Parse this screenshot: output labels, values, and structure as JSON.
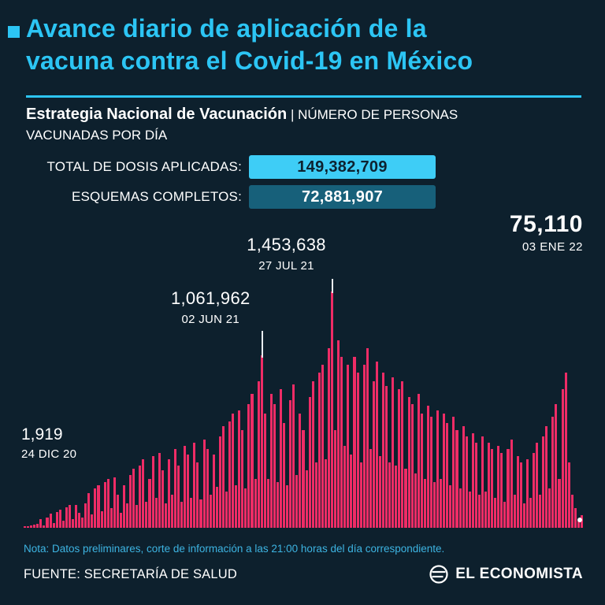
{
  "header": {
    "title_line1": "Avance diario de aplicación de la",
    "title_line2": "vacuna contra el Covid-19 en México",
    "subtitle_bold": "Estrategia Nacional de Vacunación",
    "subtitle_rest": " | NÚMERO DE PERSONAS",
    "subtitle_line2": "VACUNADAS POR DÍA"
  },
  "stats": [
    {
      "label": "TOTAL DE DOSIS APLICADAS:",
      "value": "149,382,709"
    },
    {
      "label": "ESQUEMAS COMPLETOS:",
      "value": "72,881,907"
    }
  ],
  "chart_data": {
    "type": "bar",
    "title": "Número de personas vacunadas por día",
    "x_start": "24 DIC 20",
    "x_end": "03 ENE 22",
    "ylim": [
      0,
      1500000
    ],
    "bar_color": "#ee2c66",
    "values_note": "daily series estimated from bar heights at ~2-day intervals; annotated points are exact",
    "values": [
      1919,
      6000,
      14000,
      19000,
      24000,
      52000,
      16000,
      64000,
      88000,
      30000,
      98000,
      112000,
      42000,
      124000,
      138000,
      52000,
      142000,
      92000,
      62000,
      152000,
      214000,
      82000,
      242000,
      262000,
      102000,
      282000,
      302000,
      122000,
      312000,
      204000,
      92000,
      262000,
      152000,
      322000,
      362000,
      142000,
      382000,
      422000,
      162000,
      302000,
      442000,
      182000,
      462000,
      352000,
      152000,
      422000,
      202000,
      482000,
      382000,
      162000,
      502000,
      452000,
      182000,
      522000,
      402000,
      172000,
      542000,
      482000,
      202000,
      452000,
      252000,
      562000,
      622000,
      222000,
      652000,
      702000,
      262000,
      722000,
      602000,
      242000,
      762000,
      822000,
      302000,
      902000,
      1061962,
      702000,
      302000,
      822000,
      762000,
      282000,
      852000,
      642000,
      262000,
      782000,
      882000,
      322000,
      702000,
      602000,
      352000,
      802000,
      902000,
      402000,
      952000,
      1002000,
      422000,
      1102000,
      1453638,
      602000,
      1152000,
      1052000,
      502000,
      1002000,
      452000,
      1052000,
      952000,
      402000,
      1002000,
      1102000,
      482000,
      902000,
      1022000,
      442000,
      952000,
      872000,
      402000,
      922000,
      382000,
      852000,
      902000,
      362000,
      802000,
      762000,
      332000,
      822000,
      702000,
      302000,
      752000,
      682000,
      282000,
      722000,
      302000,
      702000,
      642000,
      262000,
      682000,
      602000,
      242000,
      622000,
      562000,
      222000,
      582000,
      522000,
      202000,
      562000,
      222000,
      522000,
      482000,
      182000,
      502000,
      462000,
      162000,
      482000,
      542000,
      202000,
      442000,
      402000,
      152000,
      422000,
      182000,
      462000,
      522000,
      202000,
      562000,
      622000,
      242000,
      682000,
      762000,
      302000,
      852000,
      952000,
      402000,
      202000,
      122000,
      42000,
      75110
    ],
    "annotations": [
      {
        "value": "1,919",
        "date": "24 DIC 20"
      },
      {
        "value": "1,061,962",
        "date": "02 JUN 21"
      },
      {
        "value": "1,453,638",
        "date": "27 JUL 21"
      },
      {
        "value": "75,110",
        "date": "03 ENE 22"
      }
    ]
  },
  "footer": {
    "note": "Nota: Datos preliminares, corte de información a las 21:00 horas del día correspondiente.",
    "source": "FUENTE: SECRETARÍA DE SALUD",
    "brand": "EL ECONOMISTA"
  },
  "colors": {
    "background": "#0d202d",
    "accent_cyan": "#2cc5f4",
    "badge_cyan": "#3ecdf6",
    "badge_teal": "#17607a",
    "bar_pink": "#ee2c66",
    "note_blue": "#3db4e2"
  }
}
